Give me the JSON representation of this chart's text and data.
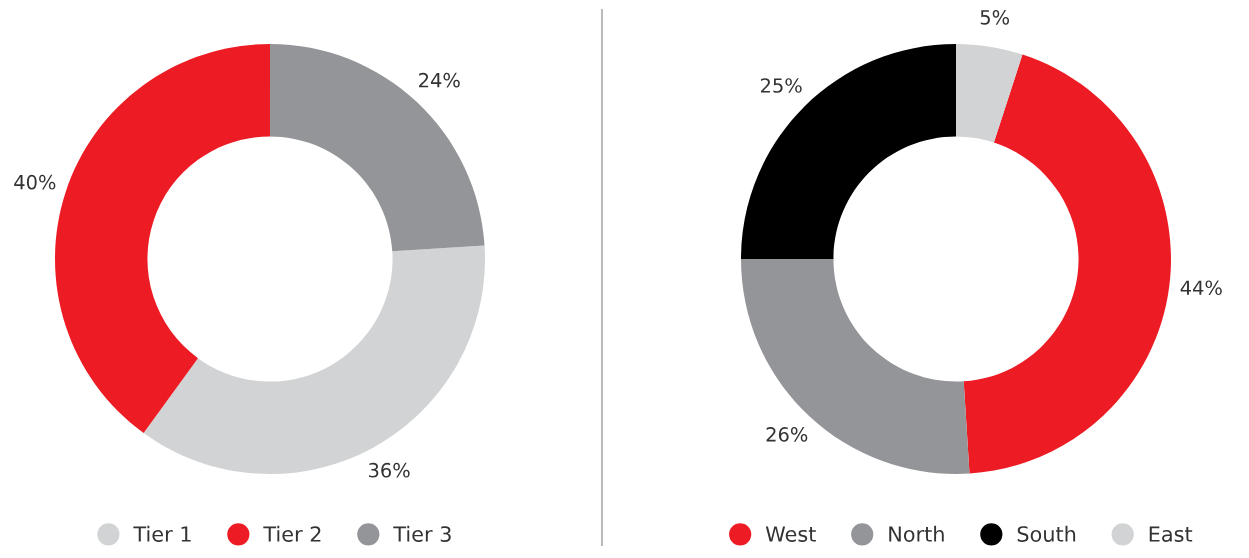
{
  "chart_data": [
    {
      "type": "donut",
      "categories": [
        "Tier 1",
        "Tier 2",
        "Tier 3"
      ],
      "values": [
        36,
        40,
        24
      ],
      "colors": [
        "#d1d3d4",
        "#ed1c24",
        "#939598"
      ],
      "value_labels": [
        "36%",
        "40%",
        "24%"
      ],
      "legend": "bottom"
    },
    {
      "type": "donut",
      "categories": [
        "West",
        "North",
        "South",
        "East"
      ],
      "values": [
        44,
        26,
        25,
        5
      ],
      "colors": [
        "#ed1c24",
        "#939598",
        "#000000",
        "#d1d3d4"
      ],
      "value_labels": [
        "44%",
        "26%",
        "25%",
        "5%"
      ],
      "legend": "bottom"
    }
  ]
}
